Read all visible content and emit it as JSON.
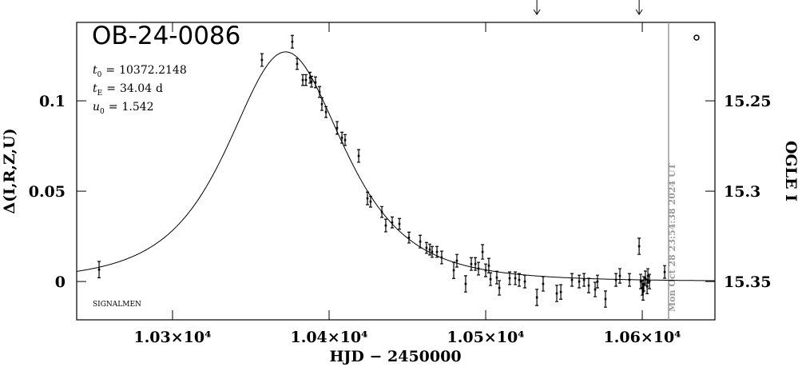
{
  "chart_data": {
    "type": "errorbar",
    "title": "OB-24-0086",
    "x_label": "HJD − 2450000",
    "y_label": "Δ(I,R,Z,U)",
    "y2_label": "OGLE I",
    "footnote": "SIGNALMEN",
    "now_label": "Mon Oct 28 23:54:38 2024 UT",
    "now_x": 10616.8,
    "arrows_x": [
      10532.7,
      10598.0
    ],
    "model": {
      "params": [
        {
          "symbol": "t",
          "sub": "0",
          "eq": "=",
          "value": 10372.2148
        },
        {
          "symbol": "t",
          "sub": "E",
          "eq": "=",
          "value": 34.04,
          "unit": "d"
        },
        {
          "symbol": "u",
          "sub": "0",
          "eq": "=",
          "value": 1.542
        }
      ]
    },
    "xlim": [
      10238.8,
      10646.4
    ],
    "ylim": [
      -0.0212,
      0.1434
    ],
    "y2lim": [
      15.3712,
      15.2066
    ],
    "xticks": [
      {
        "value": 10300,
        "label": "1.03×10⁴"
      },
      {
        "value": 10400,
        "label": "1.04×10⁴"
      },
      {
        "value": 10500,
        "label": "1.05×10⁴"
      },
      {
        "value": 10600,
        "label": "1.06×10⁴"
      }
    ],
    "yticks": [
      0,
      0.05,
      0.1
    ],
    "y2ticks": [
      15.25,
      15.3,
      15.35
    ],
    "series": [
      {
        "color": "#000000",
        "x": [
          10253.1,
          10357.1,
          10376.5,
          10379.6,
          10383.2,
          10385.2,
          10387.8,
          10388.8,
          10391.3,
          10393.9,
          10395.4,
          10398.0,
          10405.1,
          10408.2,
          10410.2,
          10418.9,
          10424.5,
          10426.5,
          10433.7,
          10436.2,
          10440.3,
          10444.9,
          10451.0,
          10458.2,
          10462.2,
          10464.3,
          10465.8,
          10468.9,
          10471.9,
          10479.6,
          10481.6,
          10487.2,
          10490.8,
          10493.4,
          10495.4,
          10498.0,
          10500.0,
          10502.0,
          10503.1,
          10507.1,
          10508.7,
          10515.3,
          10518.9,
          10521.4,
          10525.0,
          10532.7,
          10536.7,
          10545.4,
          10548.0,
          10555.1,
          10559.7,
          10562.8,
          10565.8,
          10569.9,
          10571.4,
          10576.5,
          10583.2,
          10585.7,
          10591.8,
          10598.0,
          10599.0,
          10600.0,
          10600.5,
          10601.0,
          10602.0,
          10603.1,
          10603.6,
          10604.6,
          10614.3
        ],
        "values": [
          0.0066,
          0.1226,
          0.1327,
          0.1204,
          0.1115,
          0.1115,
          0.1128,
          0.1106,
          0.1102,
          0.1049,
          0.0982,
          0.0938,
          0.085,
          0.0796,
          0.0783,
          0.0695,
          0.046,
          0.0442,
          0.0385,
          0.031,
          0.0327,
          0.0319,
          0.0243,
          0.0221,
          0.0186,
          0.0177,
          0.0164,
          0.0164,
          0.0133,
          0.0062,
          0.0115,
          -0.0013,
          0.0097,
          0.0097,
          0.0071,
          0.0164,
          0.0062,
          0.0088,
          0.0013,
          0.0022,
          -0.0035,
          0.0018,
          0.0018,
          0.0009,
          0,
          -0.0088,
          -0.0013,
          -0.0066,
          -0.0058,
          0.0009,
          0,
          0.0009,
          -0.0022,
          -0.0044,
          0,
          -0.0097,
          0.0009,
          0.0031,
          0.0009,
          0.0195,
          0,
          -0.0035,
          -0.0058,
          -0.0013,
          0.0018,
          -0.0027,
          0.0031,
          0,
          0.0053
        ],
        "errors": [
          0.0045,
          0.0035,
          0.0035,
          0.003,
          0.003,
          0.003,
          0.003,
          0.003,
          0.003,
          0.003,
          0.0035,
          0.003,
          0.0035,
          0.003,
          0.003,
          0.0035,
          0.0035,
          0.003,
          0.003,
          0.0035,
          0.003,
          0.003,
          0.003,
          0.0035,
          0.003,
          0.003,
          0.003,
          0.003,
          0.0035,
          0.0045,
          0.0035,
          0.0045,
          0.0035,
          0.0035,
          0.0035,
          0.004,
          0.0035,
          0.004,
          0.0035,
          0.0035,
          0.004,
          0.0035,
          0.0035,
          0.0035,
          0.0035,
          0.0045,
          0.004,
          0.0045,
          0.004,
          0.0035,
          0.0035,
          0.0035,
          0.004,
          0.004,
          0.0035,
          0.0045,
          0.0035,
          0.004,
          0.0035,
          0.0045,
          0.004,
          0.004,
          0.0045,
          0.004,
          0.004,
          0.004,
          0.004,
          0.004,
          0.0035
        ]
      }
    ]
  }
}
